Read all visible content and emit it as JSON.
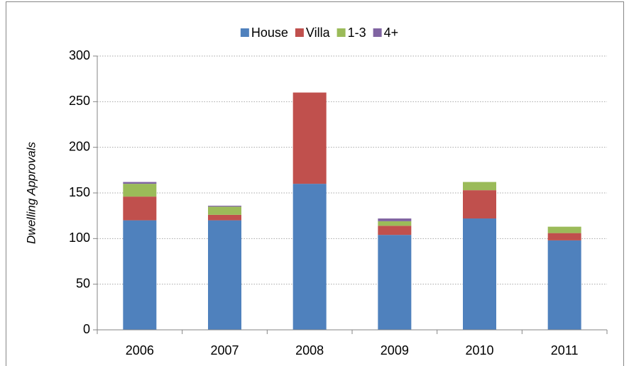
{
  "chart_data": {
    "type": "stacked_bar",
    "y_label": "Dwelling Approvals",
    "categories": [
      "2006",
      "2007",
      "2008",
      "2009",
      "2010",
      "2011"
    ],
    "series": [
      {
        "name": "House",
        "color": "#4f81bd",
        "values": [
          120,
          120,
          160,
          104,
          122,
          98
        ]
      },
      {
        "name": "Villa",
        "color": "#c0504d",
        "values": [
          26,
          6,
          100,
          10,
          31,
          8
        ]
      },
      {
        "name": "1-3",
        "color": "#9bbb59",
        "values": [
          14,
          9,
          0,
          5,
          9,
          7
        ]
      },
      {
        "name": "4+",
        "color": "#8064a2",
        "values": [
          2,
          1,
          0,
          3,
          0,
          0
        ]
      }
    ],
    "ylim": [
      0,
      300
    ],
    "yticks": [
      0,
      50,
      100,
      150,
      200,
      250,
      300
    ],
    "grid": true,
    "legend": "top"
  }
}
